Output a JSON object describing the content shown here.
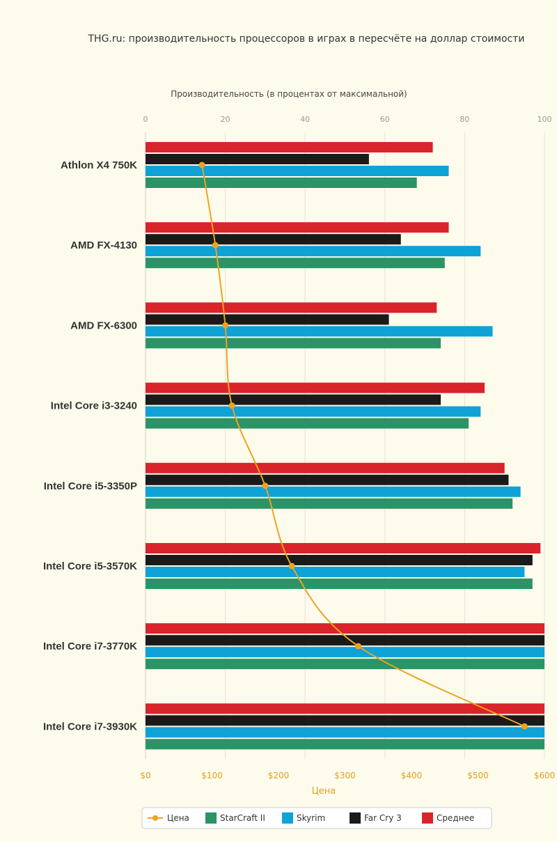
{
  "chart_data": {
    "type": "bar",
    "title": "THG.ru: производительность процессоров в играх в пересчёте на доллар стоимости",
    "top_axis_label": "Производительность (в процентах от максимальной)",
    "top_ticks": [
      "0",
      "20",
      "40",
      "60",
      "80",
      "100"
    ],
    "top_range": [
      0,
      100
    ],
    "bottom_axis_label": "Цена",
    "bottom_ticks": [
      "$0",
      "$100",
      "$200",
      "$300",
      "$400",
      "$500",
      "$600"
    ],
    "bottom_range": [
      0,
      600
    ],
    "categories": [
      "Athlon X4 750K",
      "AMD FX-4130",
      "AMD FX-6300",
      "Intel Core i3-3240",
      "Intel Core i5-3350P",
      "Intel Core i5-3570K",
      "Intel Core i7-3770K",
      "Intel Core i7-3930K"
    ],
    "series": [
      {
        "name": "Среднее",
        "color": "#d9242b",
        "values": [
          72,
          76,
          73,
          85,
          90,
          99,
          100,
          100
        ]
      },
      {
        "name": "Far Cry 3",
        "color": "#1a1a1a",
        "values": [
          56,
          64,
          61,
          74,
          91,
          97,
          100,
          100
        ]
      },
      {
        "name": "Skyrim",
        "color": "#0ea2d6",
        "values": [
          76,
          84,
          87,
          84,
          94,
          95,
          100,
          100
        ]
      },
      {
        "name": "StarCraft II",
        "color": "#2a9467",
        "values": [
          68,
          75,
          74,
          81,
          92,
          97,
          100,
          100
        ]
      }
    ],
    "line": {
      "name": "Цена",
      "color": "#efa31e",
      "values": [
        85,
        105,
        120,
        130,
        180,
        220,
        320,
        570
      ]
    },
    "legend_order": [
      "Цена",
      "StarCraft II",
      "Skyrim",
      "Far Cry 3",
      "Среднее"
    ],
    "grid": true,
    "legend_position": "bottom"
  }
}
